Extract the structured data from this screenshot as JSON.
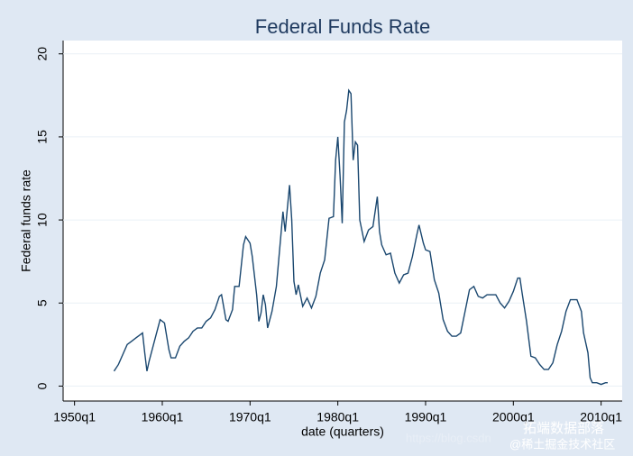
{
  "chart_data": {
    "type": "line",
    "title": "Federal Funds Rate",
    "x_label": "date (quarters)",
    "y_label": "Federal funds rate",
    "xlim": [
      1948.7,
      2012.4
    ],
    "ylim": [
      -0.9,
      20.8
    ],
    "xticks": [
      {
        "value": 1950,
        "label": "1950q1"
      },
      {
        "value": 1960,
        "label": "1960q1"
      },
      {
        "value": 1970,
        "label": "1970q1"
      },
      {
        "value": 1980,
        "label": "1980q1"
      },
      {
        "value": 1990,
        "label": "1990q1"
      },
      {
        "value": 2000,
        "label": "2000q1"
      },
      {
        "value": 2010,
        "label": "2010q1"
      }
    ],
    "yticks": [
      0,
      5,
      10,
      15,
      20
    ],
    "grid": true,
    "series": [
      {
        "color": "#1a476f",
        "x": [
          1954.5,
          1955,
          1955.5,
          1956,
          1956.5,
          1957,
          1957.5,
          1957.75,
          1958,
          1958.25,
          1958.5,
          1959,
          1959.5,
          1959.75,
          1960.25,
          1960.75,
          1961,
          1961.5,
          1962,
          1962.5,
          1963,
          1963.5,
          1964,
          1964.5,
          1965,
          1965.5,
          1966,
          1966.5,
          1966.75,
          1967.25,
          1967.5,
          1968,
          1968.25,
          1968.75,
          1969.25,
          1969.5,
          1970,
          1970.25,
          1970.75,
          1971,
          1971.25,
          1971.5,
          1971.75,
          1972,
          1972.5,
          1973,
          1973.5,
          1973.75,
          1974,
          1974.5,
          1974.75,
          1975,
          1975.25,
          1975.5,
          1976,
          1976.5,
          1977,
          1977.5,
          1978,
          1978.5,
          1979,
          1979.5,
          1979.75,
          1980,
          1980.25,
          1980.5,
          1980.75,
          1981,
          1981.25,
          1981.5,
          1981.75,
          1982,
          1982.25,
          1982.5,
          1983,
          1983.5,
          1984,
          1984.5,
          1984.75,
          1985,
          1985.5,
          1986,
          1986.5,
          1987,
          1987.5,
          1988,
          1988.5,
          1989,
          1989.25,
          1989.75,
          1990,
          1990.5,
          1991,
          1991.5,
          1992,
          1992.5,
          1993,
          1993.5,
          1994,
          1994.5,
          1995,
          1995.5,
          1996,
          1996.5,
          1997,
          1998,
          1998.5,
          1999,
          1999.5,
          2000,
          2000.5,
          2000.75,
          2001,
          2001.5,
          2002,
          2002.5,
          2003,
          2003.5,
          2004,
          2004.5,
          2005,
          2005.5,
          2006,
          2006.5,
          2007,
          2007.25,
          2007.75,
          2008,
          2008.5,
          2008.75,
          2009,
          2009.5,
          2010,
          2010.5,
          2010.75
        ],
        "values": [
          0.9,
          1.3,
          1.9,
          2.5,
          2.7,
          2.9,
          3.1,
          3.2,
          2.0,
          0.9,
          1.5,
          2.5,
          3.5,
          4.0,
          3.8,
          2.2,
          1.7,
          1.7,
          2.4,
          2.7,
          2.9,
          3.3,
          3.5,
          3.5,
          3.9,
          4.1,
          4.6,
          5.4,
          5.5,
          4.0,
          3.9,
          4.6,
          6.0,
          6.0,
          8.5,
          9.0,
          8.6,
          7.8,
          5.5,
          3.9,
          4.4,
          5.5,
          4.9,
          3.5,
          4.5,
          6.0,
          9.0,
          10.5,
          9.3,
          12.1,
          10.0,
          6.3,
          5.5,
          6.1,
          4.8,
          5.3,
          4.7,
          5.4,
          6.8,
          7.6,
          10.1,
          10.2,
          13.6,
          15.0,
          12.7,
          9.8,
          15.9,
          16.6,
          17.8,
          17.6,
          13.6,
          14.7,
          14.5,
          10.0,
          8.7,
          9.4,
          9.6,
          11.4,
          9.3,
          8.5,
          7.9,
          8.0,
          6.8,
          6.2,
          6.7,
          6.8,
          7.8,
          9.1,
          9.7,
          8.6,
          8.2,
          8.1,
          6.4,
          5.6,
          4.0,
          3.3,
          3.0,
          3.0,
          3.2,
          4.5,
          5.8,
          6.0,
          5.4,
          5.3,
          5.5,
          5.5,
          5.0,
          4.7,
          5.1,
          5.7,
          6.5,
          6.5,
          5.6,
          3.9,
          1.8,
          1.7,
          1.3,
          1.0,
          1.0,
          1.4,
          2.5,
          3.3,
          4.5,
          5.2,
          5.2,
          5.2,
          4.5,
          3.2,
          2.0,
          0.5,
          0.2,
          0.2,
          0.1,
          0.2,
          0.2
        ]
      }
    ]
  },
  "watermark": {
    "url": "https://blog.csdn",
    "brand": "拓端数据部落",
    "community": "@稀土掘金技术社区"
  }
}
